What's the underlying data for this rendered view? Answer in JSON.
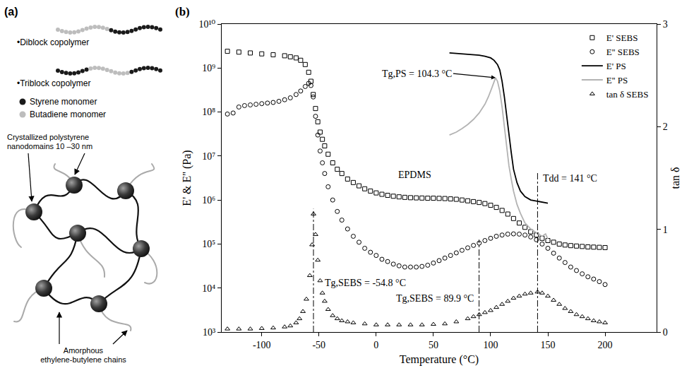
{
  "diagram": {
    "panel_label": "(a)",
    "copolymers": [
      "•Diblock copolymer",
      "•Triblock copolymer"
    ],
    "monomers": [
      {
        "name": "Styrene monomer",
        "color": "#1a1a1a"
      },
      {
        "name": "Butadiene monomer",
        "color": "#bdbdbd"
      }
    ],
    "nanodomains_label": "Crystallized polystyrene nanodomains 10 –30 nm",
    "chains_label": "Amorphous ethylene-butylene chains"
  },
  "chart_data": {
    "type": "scatter",
    "panel_label": "(b)",
    "x_label": "Temperature (°C)",
    "y_label": "E' & E'' (Pa)",
    "y2_label": "tan δ",
    "log": "y",
    "grid": false,
    "legend": "upper right",
    "xlim": [
      -135,
      245
    ],
    "xticks": [
      -100,
      -50,
      0,
      50,
      100,
      150,
      200
    ],
    "ylim": [
      1000,
      10000000000
    ],
    "yticks": [
      {
        "value": 1000,
        "label": "10³"
      },
      {
        "value": 10000,
        "label": "10⁴"
      },
      {
        "value": 100000,
        "label": "10⁵"
      },
      {
        "value": 1000000,
        "label": "10⁶"
      },
      {
        "value": 10000000,
        "label": "10⁷"
      },
      {
        "value": 100000000,
        "label": "10⁸"
      },
      {
        "value": 1000000000,
        "label": "10⁹"
      },
      {
        "value": 10000000000,
        "label": "10¹⁰"
      }
    ],
    "y2lim": [
      0,
      3
    ],
    "y2ticks": [
      0,
      1,
      2,
      3
    ],
    "series": [
      {
        "name": "E' SEBS",
        "color": "#000000",
        "marker": "square",
        "x": [
          -130,
          -120,
          -110,
          -100,
          -90,
          -80,
          -75,
          -70,
          -66,
          -62,
          -59,
          -57,
          -55,
          -53,
          -51,
          -49,
          -47,
          -45,
          -42,
          -38,
          -34,
          -30,
          -25,
          -20,
          -15,
          -10,
          -5,
          0,
          5,
          10,
          15,
          20,
          25,
          30,
          35,
          40,
          45,
          50,
          55,
          60,
          65,
          70,
          75,
          80,
          85,
          90,
          95,
          100,
          105,
          110,
          115,
          120,
          125,
          130,
          135,
          140,
          145,
          150,
          155,
          160,
          165,
          170,
          175,
          180,
          185,
          190,
          195,
          200
        ],
        "values": [
          2400000000.0,
          2300000000.0,
          2200000000.0,
          2100000000.0,
          2000000000.0,
          1900000000.0,
          1800000000.0,
          1700000000.0,
          1500000000.0,
          1200000000.0,
          800000000.0,
          500000000.0,
          250000000.0,
          120000000.0,
          60000000.0,
          35000000.0,
          24000000.0,
          17000000.0,
          11000000.0,
          7000000.0,
          5000000.0,
          4000000.0,
          3000000.0,
          2500000.0,
          2100000.0,
          1800000.0,
          1600000.0,
          1450000.0,
          1350000.0,
          1280000.0,
          1220000.0,
          1180000.0,
          1150000.0,
          1130000.0,
          1120000.0,
          1110000.0,
          1100000.0,
          1100000.0,
          1090000.0,
          1080000.0,
          1060000.0,
          1040000.0,
          1000000.0,
          960000.0,
          920000.0,
          880000.0,
          830000.0,
          760000.0,
          680000.0,
          580000.0,
          480000.0,
          380000.0,
          300000.0,
          240000.0,
          190000.0,
          160000.0,
          135000.0,
          120000.0,
          110000.0,
          100000.0,
          95000.0,
          92000.0,
          90000.0,
          88000.0,
          86000.0,
          85000.0,
          84000.0,
          83000.0
        ]
      },
      {
        "name": "E'' SEBS",
        "color": "#000000",
        "marker": "circle",
        "x": [
          -130,
          -125,
          -120,
          -115,
          -110,
          -105,
          -100,
          -95,
          -90,
          -85,
          -80,
          -75,
          -70,
          -66,
          -62,
          -59,
          -57,
          -55,
          -53,
          -51,
          -49,
          -47,
          -45,
          -42,
          -38,
          -34,
          -30,
          -25,
          -20,
          -15,
          -10,
          -5,
          0,
          5,
          10,
          15,
          20,
          25,
          30,
          35,
          40,
          45,
          50,
          55,
          60,
          65,
          70,
          75,
          80,
          85,
          90,
          95,
          100,
          105,
          110,
          115,
          120,
          125,
          130,
          135,
          140,
          145,
          150,
          155,
          160,
          165,
          170,
          175,
          180,
          185,
          190,
          195,
          200
        ],
        "values": [
          90000000.0,
          95000000.0,
          130000000.0,
          140000000.0,
          145000000.0,
          150000000.0,
          155000000.0,
          160000000.0,
          165000000.0,
          175000000.0,
          190000000.0,
          210000000.0,
          250000000.0,
          300000000.0,
          380000000.0,
          450000000.0,
          400000000.0,
          220000000.0,
          80000000.0,
          30000000.0,
          13000000.0,
          7000000.0,
          4000000.0,
          2000000.0,
          1000000.0,
          550000.0,
          350000.0,
          220000.0,
          150000.0,
          110000.0,
          80000.0,
          65000.0,
          55000.0,
          45000.0,
          40000.0,
          35000.0,
          32000.0,
          30000.0,
          30000.0,
          30000.0,
          31000.0,
          33000.0,
          37000.0,
          42000.0,
          48000.0,
          55000.0,
          63000.0,
          72000.0,
          82000.0,
          93000.0,
          105000.0,
          120000.0,
          135000.0,
          150000.0,
          160000.0,
          168000.0,
          170000.0,
          168000.0,
          160000.0,
          145000.0,
          125000.0,
          100000.0,
          80000.0,
          62000.0,
          48000.0,
          38000.0,
          30000.0,
          25000.0,
          21000.0,
          18000.0,
          16000.0,
          14000.0,
          12000.0
        ]
      },
      {
        "name": "E' PS",
        "color": "#000000",
        "line_style": "solid",
        "x": [
          64,
          70,
          75,
          80,
          85,
          90,
          95,
          100,
          103,
          106,
          108,
          110,
          112,
          114,
          116,
          118,
          120,
          123,
          126,
          130,
          135,
          140,
          145,
          150
        ],
        "values": [
          2200000000.0,
          2150000000.0,
          2100000000.0,
          2050000000.0,
          2000000000.0,
          1950000000.0,
          1850000000.0,
          1700000000.0,
          1500000000.0,
          1200000000.0,
          900000000.0,
          500000000.0,
          220000000.0,
          80000000.0,
          30000000.0,
          12000000.0,
          5000000.0,
          2500000.0,
          1600000.0,
          1200000.0,
          1000000.0,
          950000.0,
          900000.0,
          850000.0
        ]
      },
      {
        "name": "E'' PS",
        "color": "#b3b3b3",
        "line_style": "solid",
        "x": [
          64,
          70,
          75,
          80,
          85,
          90,
          95,
          98,
          101,
          103,
          104.3,
          106,
          108,
          110,
          112,
          114,
          116,
          118,
          120,
          123,
          126,
          130,
          135,
          140,
          145,
          148,
          150
        ],
        "values": [
          30000000.0,
          35000000.0,
          42000000.0,
          52000000.0,
          68000000.0,
          95000000.0,
          150000000.0,
          220000000.0,
          350000000.0,
          500000000.0,
          600000000.0,
          500000000.0,
          300000000.0,
          130000000.0,
          45000000.0,
          15000000.0,
          6000000.0,
          3000000.0,
          1600000.0,
          800000.0,
          500000.0,
          300000.0,
          220000.0,
          180000.0,
          150000.0,
          170000.0,
          130000.0
        ]
      },
      {
        "name": "tan δ SEBS",
        "color": "#000000",
        "marker": "triangle",
        "axis": "y2",
        "x": [
          -130,
          -120,
          -110,
          -100,
          -90,
          -80,
          -75,
          -70,
          -67,
          -64,
          -61,
          -58,
          -56,
          -54.8,
          -53,
          -51,
          -49,
          -47,
          -45,
          -42,
          -38,
          -34,
          -30,
          -25,
          -20,
          -10,
          0,
          10,
          20,
          30,
          40,
          50,
          60,
          70,
          80,
          85,
          90,
          95,
          100,
          105,
          110,
          115,
          120,
          125,
          130,
          135,
          141,
          145,
          150,
          155,
          160,
          165,
          170,
          175,
          180,
          185,
          190,
          195,
          200
        ],
        "values": [
          0.03,
          0.03,
          0.03,
          0.035,
          0.04,
          0.05,
          0.06,
          0.09,
          0.13,
          0.2,
          0.32,
          0.55,
          0.85,
          1.15,
          0.95,
          0.7,
          0.5,
          0.38,
          0.3,
          0.22,
          0.16,
          0.13,
          0.11,
          0.1,
          0.09,
          0.08,
          0.07,
          0.07,
          0.07,
          0.07,
          0.07,
          0.075,
          0.08,
          0.1,
          0.13,
          0.15,
          0.17,
          0.19,
          0.21,
          0.24,
          0.27,
          0.3,
          0.33,
          0.35,
          0.37,
          0.38,
          0.39,
          0.38,
          0.35,
          0.31,
          0.27,
          0.23,
          0.2,
          0.17,
          0.15,
          0.13,
          0.11,
          0.1,
          0.09
        ]
      }
    ],
    "annotations": [
      {
        "text": "Tg,PS = 104.3 °C",
        "x": 104.3,
        "marker": "arrow"
      },
      {
        "text": "Tg,SEBS = -54.8 °C",
        "x": -54.8,
        "line_style": "dashdot"
      },
      {
        "text": "Tg,SEBS = 89.9 °C",
        "x": 89.9,
        "line_style": "dashdot"
      },
      {
        "text": "Tdd = 141 °C",
        "x": 141,
        "line_style": "dashdot"
      },
      {
        "text": "EPDMS",
        "line_style": "dashed"
      }
    ]
  }
}
